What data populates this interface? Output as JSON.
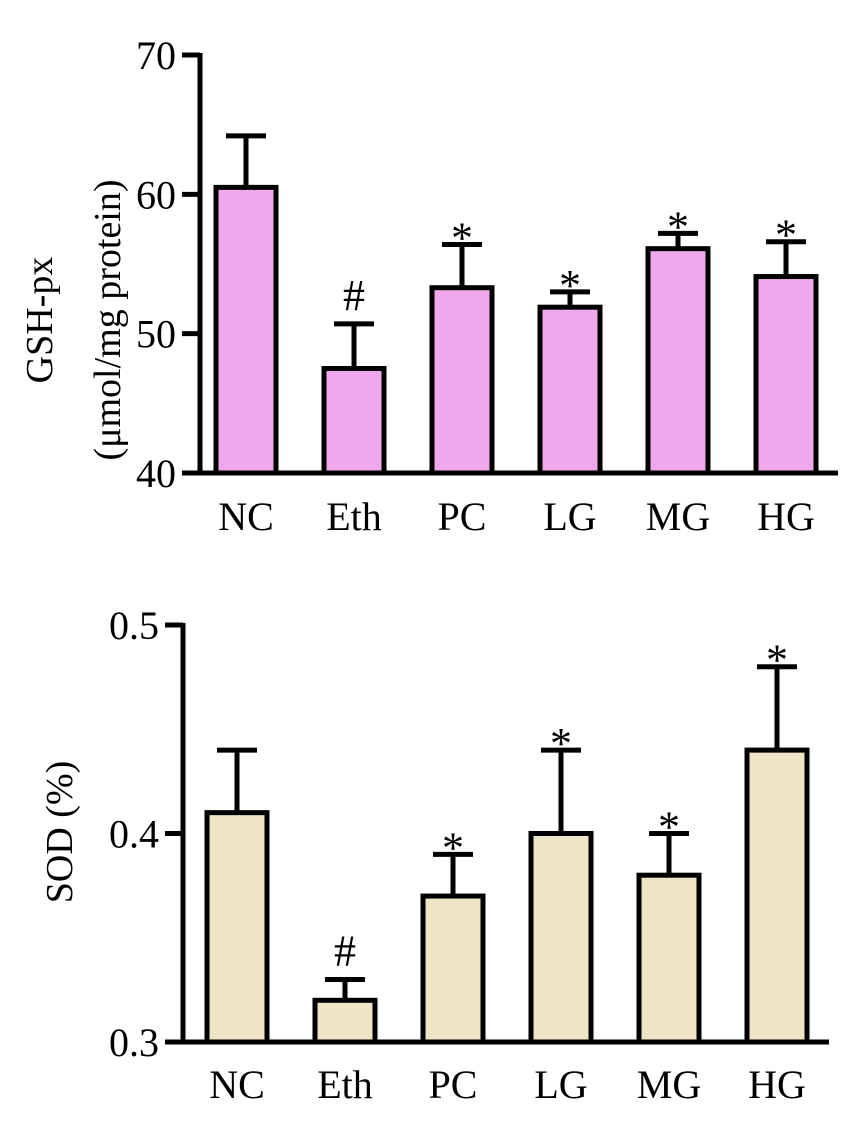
{
  "chart_data": [
    {
      "type": "bar",
      "ylabel_line1": "GSH-px",
      "ylabel_line2": "(μmol/mg protein)",
      "categories": [
        "NC",
        "Eth",
        "PC",
        "LG",
        "MG",
        "HG"
      ],
      "values": [
        60.5,
        47.5,
        53.3,
        51.9,
        56.1,
        54.1
      ],
      "errors": [
        3.7,
        3.2,
        3.1,
        1.1,
        1.1,
        2.5
      ],
      "annotations": [
        "",
        "#",
        "*",
        "*",
        "*",
        "*"
      ],
      "ylim": [
        40,
        70
      ],
      "yticks": [
        40,
        50,
        60,
        70
      ],
      "ytick_labels": [
        "40",
        "50",
        "60",
        "70"
      ],
      "bar_color": "#f0a8ec"
    },
    {
      "type": "bar",
      "ylabel": "SOD (%)",
      "categories": [
        "NC",
        "Eth",
        "PC",
        "LG",
        "MG",
        "HG"
      ],
      "values": [
        0.41,
        0.32,
        0.37,
        0.4,
        0.38,
        0.44
      ],
      "errors": [
        0.03,
        0.01,
        0.02,
        0.04,
        0.02,
        0.04
      ],
      "annotations": [
        "",
        "#",
        "*",
        "*",
        "*",
        "*"
      ],
      "ylim": [
        0.3,
        0.5
      ],
      "yticks": [
        0.3,
        0.4,
        0.5
      ],
      "ytick_labels": [
        "0.3",
        "0.4",
        "0.5"
      ],
      "bar_color": "#ede5c6"
    }
  ]
}
